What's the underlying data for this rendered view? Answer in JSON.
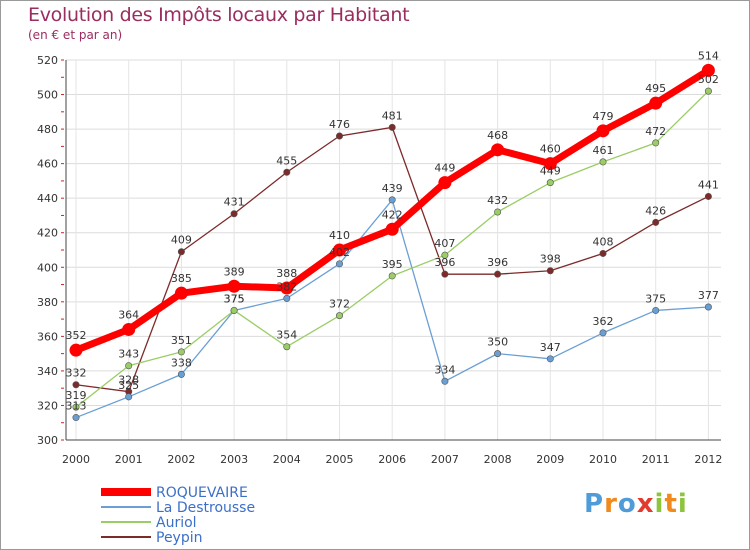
{
  "chart_data": {
    "type": "line",
    "title": "Evolution des Impôts locaux par Habitant",
    "subtitle": "(en € et par an)",
    "xlabel": "",
    "ylabel": "",
    "categories": [
      "2000",
      "2001",
      "2002",
      "2003",
      "2004",
      "2005",
      "2006",
      "2007",
      "2008",
      "2009",
      "2010",
      "2011",
      "2012"
    ],
    "ylim": [
      300,
      520
    ],
    "yticks": [
      300,
      320,
      340,
      360,
      380,
      400,
      420,
      440,
      460,
      480,
      500,
      520
    ],
    "grid": true,
    "legend_position": "bottom-left",
    "series": [
      {
        "name": "ROQUEVAIRE",
        "color": "#ff0000",
        "values": [
          352,
          364,
          385,
          389,
          388,
          410,
          422,
          449,
          468,
          460,
          479,
          495,
          514
        ],
        "labels": [
          "352",
          "364",
          "385",
          "389",
          "388",
          "410",
          "422",
          "449",
          "468",
          "460",
          "479",
          "495",
          "514"
        ]
      },
      {
        "name": "La Destrousse",
        "color": "#6a9fd4",
        "values": [
          313,
          325,
          338,
          375,
          382,
          402,
          439,
          334,
          350,
          347,
          362,
          375,
          377
        ],
        "labels": [
          "313",
          "325",
          "338",
          "375",
          "382",
          "402",
          "439",
          "334",
          "350",
          "347",
          "362",
          "375",
          "377"
        ]
      },
      {
        "name": "Auriol",
        "color": "#9acd66",
        "values": [
          319,
          343,
          351,
          375,
          354,
          372,
          395,
          407,
          432,
          449,
          461,
          472,
          502
        ],
        "labels": [
          "319",
          "343",
          "351",
          "375",
          "354",
          "372",
          "395",
          "407",
          "432",
          "449",
          "461",
          "472",
          "502"
        ]
      },
      {
        "name": "Peypin",
        "color": "#7d2a2a",
        "values": [
          332,
          328,
          409,
          431,
          455,
          476,
          481,
          396,
          396,
          398,
          408,
          426,
          441
        ],
        "labels": [
          "332",
          "328",
          "409",
          "431",
          "455",
          "476",
          "481",
          "396",
          "396",
          "398",
          "408",
          "426",
          "441"
        ]
      }
    ]
  },
  "logo": {
    "letters": [
      "P",
      "r",
      "o",
      "x",
      "i",
      "t",
      "i"
    ],
    "colors": [
      "#4f9cd8",
      "#f08a1c",
      "#4f9cd8",
      "#e23a2e",
      "#8cc43c",
      "#f08a1c",
      "#8cc43c"
    ]
  }
}
